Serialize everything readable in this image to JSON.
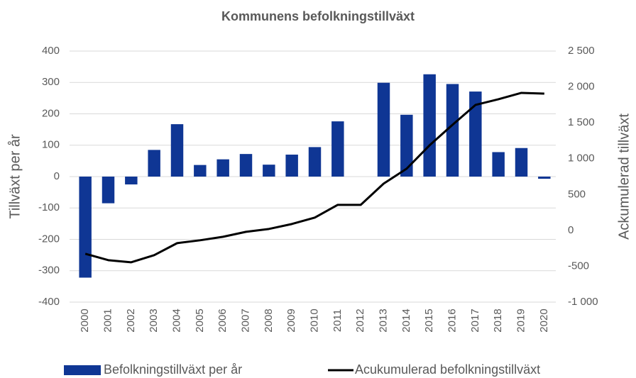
{
  "chart_data": {
    "type": "bar_line",
    "title": "Kommunens befolkningstillväxt",
    "y_label": "Tillväxt per år",
    "y2_label": "Ackumulerad tillväxt",
    "categories": [
      "2000",
      "2001",
      "2002",
      "2003",
      "2004",
      "2005",
      "2006",
      "2007",
      "2008",
      "2009",
      "2010",
      "2011",
      "2012",
      "2013",
      "2014",
      "2015",
      "2016",
      "2017",
      "2018",
      "2019",
      "2020"
    ],
    "series": [
      {
        "name": "Befolkningstillväxt per år",
        "type": "bar",
        "color": "#0f3694",
        "values": [
          -322,
          -85,
          -25,
          85,
          167,
          37,
          55,
          72,
          38,
          70,
          94,
          176,
          0,
          299,
          197,
          326,
          295,
          271,
          78,
          91,
          -7
        ]
      },
      {
        "name": "Acukumulerad befolkningstillväxt",
        "type": "line",
        "axis": "y2",
        "color": "#000000",
        "values": [
          -326,
          -415,
          -445,
          -346,
          -178,
          -138,
          -89,
          -20,
          20,
          89,
          178,
          356,
          356,
          652,
          860,
          1186,
          1472,
          1749,
          1828,
          1917,
          1907
        ]
      }
    ],
    "ylim": [
      -400,
      400
    ],
    "yticks": [
      -400,
      -300,
      -200,
      -100,
      0,
      100,
      200,
      300,
      400
    ],
    "y2lim": [
      -1000,
      2500
    ],
    "y2ticks": [
      {
        "value": -1000,
        "label": "-1 000"
      },
      -500,
      0,
      500,
      {
        "value": 1000,
        "label": "1 000"
      },
      {
        "value": 1500,
        "label": "1 500"
      },
      {
        "value": 2000,
        "label": "2 000"
      },
      {
        "value": 2500,
        "label": "2 500"
      }
    ],
    "grid": true,
    "legend": "bottom"
  }
}
